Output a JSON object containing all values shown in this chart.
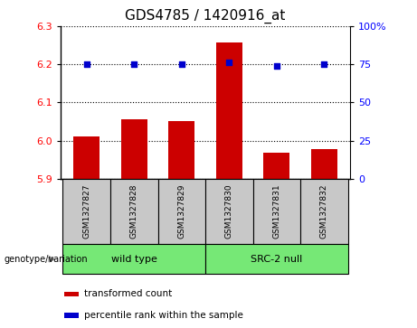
{
  "title": "GDS4785 / 1420916_at",
  "samples": [
    "GSM1327827",
    "GSM1327828",
    "GSM1327829",
    "GSM1327830",
    "GSM1327831",
    "GSM1327832"
  ],
  "bar_values": [
    6.01,
    6.055,
    6.052,
    6.258,
    5.968,
    5.977
  ],
  "percentile_values": [
    6.2,
    6.2,
    6.2,
    6.205,
    6.196,
    6.2
  ],
  "ylim": [
    5.9,
    6.3
  ],
  "yticks_left": [
    5.9,
    6.0,
    6.1,
    6.2,
    6.3
  ],
  "yticks_right_vals": [
    0,
    25,
    50,
    75,
    100
  ],
  "bar_color": "#cc0000",
  "dot_color": "#0000cc",
  "bar_base": 5.9,
  "group_box_color": "#c8c8c8",
  "groups": [
    {
      "label": "wild type",
      "indices": [
        0,
        1,
        2
      ],
      "color": "#76e876"
    },
    {
      "label": "SRC-2 null",
      "indices": [
        3,
        4,
        5
      ],
      "color": "#76e876"
    }
  ],
  "legend_items": [
    {
      "color": "#cc0000",
      "label": "transformed count"
    },
    {
      "color": "#0000cc",
      "label": "percentile rank within the sample"
    }
  ],
  "genotype_label": "genotype/variation"
}
